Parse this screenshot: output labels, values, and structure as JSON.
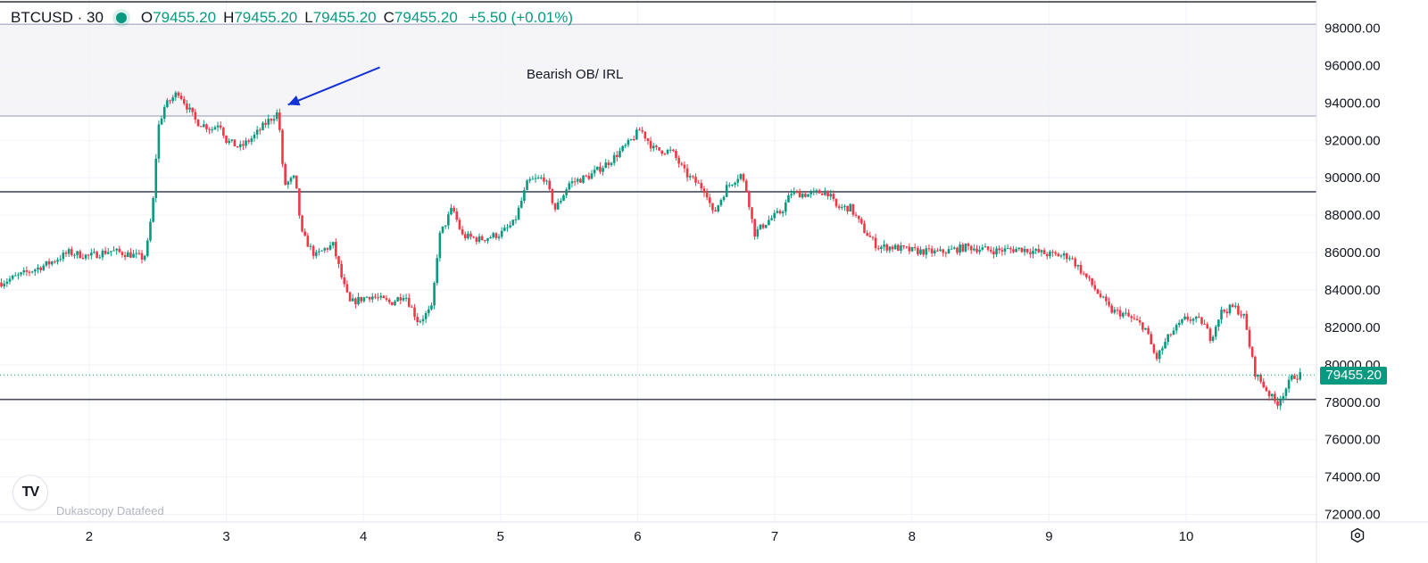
{
  "header": {
    "symbol": "BTCUSD · 30",
    "open_label": "O",
    "open": "79455.20",
    "high_label": "H",
    "high": "79455.20",
    "low_label": "L",
    "low": "79455.20",
    "close_label": "C",
    "close": "79455.20",
    "change": "+5.50 (+0.01%)"
  },
  "annotation": {
    "text": "Bearish OB/ IRL"
  },
  "watermark": {
    "datafeed": "Dukascopy Datafeed",
    "logo_icon": "tradingview-logo-icon"
  },
  "last_price": "79455.20",
  "colors": {
    "up": "#089981",
    "down": "#f23645",
    "arrow": "#1433d6",
    "zone": "#f5f5f8"
  },
  "chart_data": {
    "type": "candlestick",
    "title": "",
    "xlabel": "",
    "ylabel": "",
    "x_ticks": [
      "2",
      "3",
      "4",
      "5",
      "6",
      "7",
      "8",
      "9",
      "10"
    ],
    "y_ticks": [
      "98000.00",
      "96000.00",
      "94000.00",
      "92000.00",
      "90000.00",
      "88000.00",
      "86000.00",
      "84000.00",
      "82000.00",
      "80000.00",
      "78000.00",
      "76000.00",
      "74000.00",
      "72000.00"
    ],
    "ylim": [
      71600,
      99500
    ],
    "xlim": [
      1.35,
      10.95
    ],
    "grid": true,
    "path_points": [
      [
        1.36,
        84400
      ],
      [
        1.5,
        84800
      ],
      [
        1.7,
        85400
      ],
      [
        1.85,
        86000
      ],
      [
        2.0,
        85800
      ],
      [
        2.15,
        86100
      ],
      [
        2.3,
        85900
      ],
      [
        2.4,
        85700
      ],
      [
        2.43,
        86600
      ],
      [
        2.47,
        89000
      ],
      [
        2.5,
        92600
      ],
      [
        2.55,
        93800
      ],
      [
        2.65,
        94600
      ],
      [
        2.78,
        93000
      ],
      [
        2.9,
        92600
      ],
      [
        2.95,
        93000
      ],
      [
        3.0,
        92000
      ],
      [
        3.1,
        91600
      ],
      [
        3.2,
        92200
      ],
      [
        3.3,
        93000
      ],
      [
        3.38,
        93500
      ],
      [
        3.42,
        89600
      ],
      [
        3.5,
        90000
      ],
      [
        3.55,
        87000
      ],
      [
        3.65,
        85800
      ],
      [
        3.72,
        86200
      ],
      [
        3.78,
        86400
      ],
      [
        3.85,
        84400
      ],
      [
        3.9,
        83300
      ],
      [
        4.05,
        83700
      ],
      [
        4.2,
        83300
      ],
      [
        4.3,
        83800
      ],
      [
        4.4,
        82300
      ],
      [
        4.5,
        83000
      ],
      [
        4.55,
        86800
      ],
      [
        4.65,
        88400
      ],
      [
        4.72,
        86900
      ],
      [
        4.85,
        86700
      ],
      [
        5.0,
        87000
      ],
      [
        5.1,
        87600
      ],
      [
        5.2,
        89800
      ],
      [
        5.32,
        90000
      ],
      [
        5.4,
        88300
      ],
      [
        5.5,
        89700
      ],
      [
        5.65,
        90100
      ],
      [
        5.8,
        90900
      ],
      [
        5.93,
        91800
      ],
      [
        6.02,
        92600
      ],
      [
        6.12,
        91500
      ],
      [
        6.25,
        91400
      ],
      [
        6.35,
        90200
      ],
      [
        6.5,
        89300
      ],
      [
        6.55,
        88000
      ],
      [
        6.65,
        89500
      ],
      [
        6.75,
        90200
      ],
      [
        6.8,
        89200
      ],
      [
        6.85,
        87000
      ],
      [
        6.95,
        87700
      ],
      [
        7.05,
        88200
      ],
      [
        7.12,
        89200
      ],
      [
        7.25,
        89100
      ],
      [
        7.38,
        89300
      ],
      [
        7.45,
        88400
      ],
      [
        7.55,
        88400
      ],
      [
        7.65,
        87200
      ],
      [
        7.75,
        86300
      ],
      [
        7.85,
        86300
      ],
      [
        8.0,
        86100
      ],
      [
        8.2,
        86000
      ],
      [
        8.4,
        86300
      ],
      [
        8.6,
        86100
      ],
      [
        8.8,
        86200
      ],
      [
        9.0,
        85900
      ],
      [
        9.15,
        85800
      ],
      [
        9.3,
        84400
      ],
      [
        9.45,
        82900
      ],
      [
        9.55,
        82700
      ],
      [
        9.7,
        82000
      ],
      [
        9.78,
        80300
      ],
      [
        9.88,
        81600
      ],
      [
        10.0,
        82500
      ],
      [
        10.12,
        82300
      ],
      [
        10.18,
        81400
      ],
      [
        10.25,
        82800
      ],
      [
        10.35,
        83100
      ],
      [
        10.42,
        82600
      ],
      [
        10.5,
        79600
      ],
      [
        10.6,
        78500
      ],
      [
        10.66,
        77900
      ],
      [
        10.78,
        79400
      ],
      [
        10.84,
        79455.2
      ]
    ],
    "levels": [
      {
        "y": 93300,
        "style": "zone-bottom"
      },
      {
        "y": 98200,
        "style": "zone-top"
      },
      {
        "y": 99400,
        "style": "top-border"
      },
      {
        "y": 89250,
        "style": "horizontal-line"
      },
      {
        "y": 78150,
        "style": "horizontal-line"
      }
    ],
    "zone": {
      "y0": 93300,
      "y1": 98200,
      "label": "Bearish OB/ IRL"
    },
    "arrow": {
      "from": [
        4.12,
        95900
      ],
      "to": [
        3.45,
        93900
      ]
    },
    "last_price": 79455.2
  }
}
